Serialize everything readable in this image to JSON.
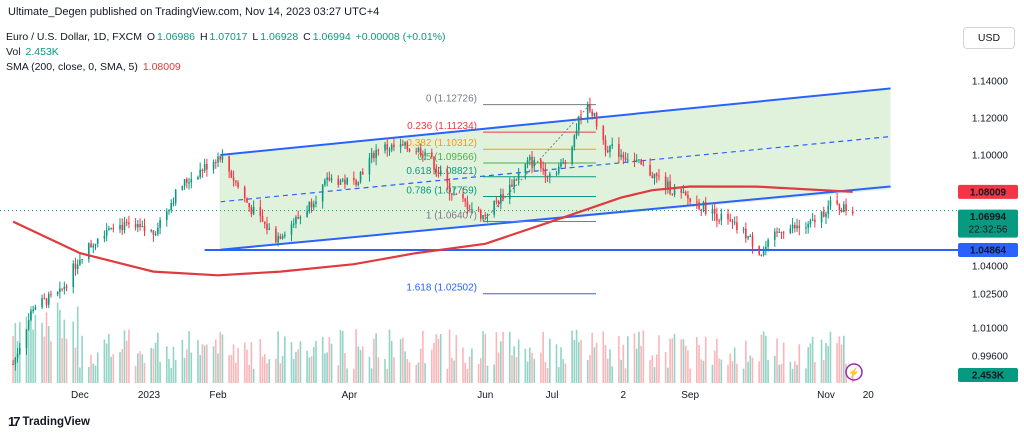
{
  "header": {
    "publisher_line": "Ultimate_Degen published on TradingView.com, Nov 14, 2023 03:27 UTC+4"
  },
  "legend": {
    "symbol": "Euro / U.S. Dollar, 1D, FXCM",
    "open_label": "O",
    "open": "1.06986",
    "high_label": "H",
    "high": "1.07017",
    "low_label": "L",
    "low": "1.06928",
    "close_label": "C",
    "close": "1.06994",
    "change": "+0.00008 (+0.01%)",
    "vol_label": "Vol",
    "vol": "2.453K",
    "sma_label": "SMA (200, close, 0, SMA, 5)",
    "sma": "1.08009"
  },
  "currency_button": "USD",
  "branding": {
    "logo_text": "TradingView"
  },
  "colors": {
    "up": "#089981",
    "down": "#f23645",
    "channel": "#2962ff",
    "sma": "#e0393e",
    "channel_fill": "#d9efd3",
    "fib_red": "#f23645",
    "fib_orange": "#ff9800",
    "fib_green": "#4caf50",
    "fib_teal": "#089981",
    "fib_gray": "#787b86",
    "fib_blue": "#2962ff"
  },
  "chart_data": {
    "type": "candlestick",
    "symbol": "Euro / U.S. Dollar, 1D, FXCM",
    "x_ticks": [
      "Dec",
      "2023",
      "Feb",
      "Apr",
      "Jun",
      "Jul",
      "2",
      "Sep",
      "Nov",
      "20"
    ],
    "y_ticks": [
      "1.14000",
      "1.12000",
      "1.10000",
      "1.04000",
      "1.02500",
      "1.01000",
      "0.99600"
    ],
    "price_labels": [
      {
        "label": "sma",
        "value": "1.08009",
        "color": "#f23645"
      },
      {
        "label": "last",
        "value": "1.06994",
        "countdown": "22:32:56",
        "color": "#089981"
      },
      {
        "label": "support",
        "value": "1.04864",
        "color": "#2962ff"
      },
      {
        "label": "volume",
        "value": "2.453K",
        "color": "#089981"
      }
    ],
    "ohlc_anchor_series": [
      [
        "Nov 1",
        0.987
      ],
      [
        "Nov 10",
        1.018
      ],
      [
        "Nov 22",
        1.025
      ],
      [
        "Dec 1",
        1.045
      ],
      [
        "Dec 15",
        1.063
      ],
      [
        "Jan 3",
        1.058
      ],
      [
        "Jan 15",
        1.083
      ],
      [
        "Feb 2",
        1.1
      ],
      [
        "Feb 15",
        1.072
      ],
      [
        "Feb 27",
        1.055
      ],
      [
        "Mar 10",
        1.067
      ],
      [
        "Mar 23",
        1.087
      ],
      [
        "Apr 3",
        1.085
      ],
      [
        "Apr 14",
        1.104
      ],
      [
        "Apr 26",
        1.104
      ],
      [
        "May 5",
        1.102
      ],
      [
        "May 18",
        1.078
      ],
      [
        "May 31",
        1.067
      ],
      [
        "Jun 8",
        1.077
      ],
      [
        "Jun 21",
        1.097
      ],
      [
        "Jun 30",
        1.09
      ],
      [
        "Jul 7",
        1.096
      ],
      [
        "Jul 14",
        1.122
      ],
      [
        "Jul 18",
        1.126
      ],
      [
        "Jul 25",
        1.105
      ],
      [
        "Aug 4",
        1.099
      ],
      [
        "Aug 18",
        1.087
      ],
      [
        "Aug 25",
        1.08
      ],
      [
        "Sep 7",
        1.072
      ],
      [
        "Sep 15",
        1.066
      ],
      [
        "Sep 26",
        1.057
      ],
      [
        "Oct 3",
        1.047
      ],
      [
        "Oct 12",
        1.06
      ],
      [
        "Oct 24",
        1.061
      ],
      [
        "Nov 3",
        1.073
      ],
      [
        "Nov 13",
        1.0699
      ]
    ],
    "sma200_series": [
      [
        "Nov 1",
        1.064
      ],
      [
        "Dec 1",
        1.047
      ],
      [
        "Jan 3",
        1.037
      ],
      [
        "Feb 1",
        1.035
      ],
      [
        "Mar 1",
        1.037
      ],
      [
        "Apr 3",
        1.041
      ],
      [
        "May 1",
        1.047
      ],
      [
        "Jun 1",
        1.052
      ],
      [
        "Jul 3",
        1.065
      ],
      [
        "Aug 1",
        1.077
      ],
      [
        "Aug 15",
        1.081
      ],
      [
        "Sep 1",
        1.083
      ],
      [
        "Oct 1",
        1.0829
      ],
      [
        "Nov 13",
        1.0801
      ]
    ],
    "channel": {
      "upper": [
        [
          "Feb 2",
          1.1
        ],
        [
          "Nov 30",
          1.136
        ]
      ],
      "lower": [
        [
          "Feb 2",
          1.0488
        ],
        [
          "Nov 30",
          1.083
        ]
      ],
      "mid": [
        [
          "Feb 2",
          1.0747
        ],
        [
          "Nov 30",
          1.11
        ]
      ]
    },
    "support_line": {
      "value": 1.04864,
      "from": "Jan 26"
    },
    "fibonacci": [
      {
        "label": "0 (1.12726)",
        "value": 1.12726
      },
      {
        "label": "0.236 (1.11234)",
        "value": 1.11234
      },
      {
        "label": "0.382 (1.10312)",
        "value": 1.10312
      },
      {
        "label": "0.5 (1.09566)",
        "value": 1.09566
      },
      {
        "label": "0.618 (1.08821)",
        "value": 1.08821
      },
      {
        "label": "0.786 (1.07759)",
        "value": 1.07759
      },
      {
        "label": "1 (1.06407)",
        "value": 1.06407
      },
      {
        "label": "1.618 (1.02502)",
        "value": 1.02502
      }
    ],
    "volume_last": "2.453K",
    "grid": false,
    "legend_position": "top-left"
  }
}
